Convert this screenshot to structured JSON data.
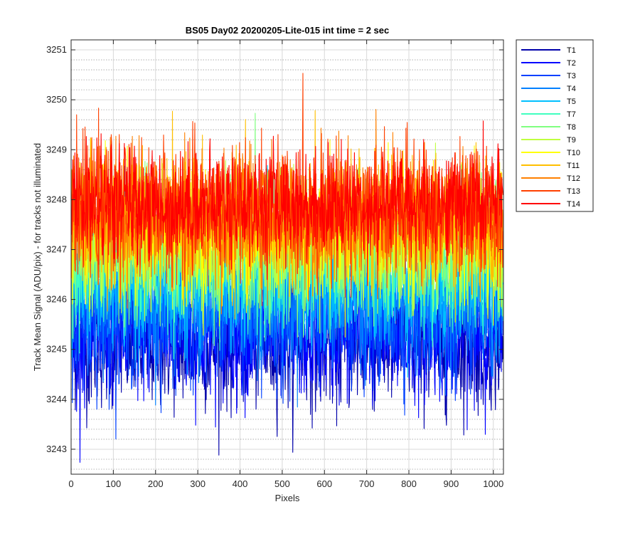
{
  "chart_data": {
    "type": "line",
    "title": "BS05 Day02 20200205-Lite-015 int time = 2 sec",
    "xlabel": "Pixels",
    "ylabel": "Track Mean Signal (ADU/pix) - for tracks not illuminated",
    "xlim": [
      0,
      1024
    ],
    "ylim": [
      3242.5,
      3251.2
    ],
    "x_ticks": [
      0,
      100,
      200,
      300,
      400,
      500,
      600,
      700,
      800,
      900,
      1000
    ],
    "x_tick_labels": [
      "0",
      "100",
      "200",
      "300",
      "400",
      "500",
      "600",
      "700",
      "800",
      "900",
      "1000"
    ],
    "y_ticks": [
      3243,
      3244,
      3245,
      3246,
      3247,
      3248,
      3249,
      3250,
      3251
    ],
    "y_tick_labels": [
      "3243",
      "3244",
      "3245",
      "3246",
      "3247",
      "3248",
      "3249",
      "3250",
      "3251"
    ],
    "grid": "major solid, minor dotted",
    "legend_placement": "outside-top-right",
    "n_pixels": 1024,
    "series": [
      {
        "name": "T1",
        "color": "#0000aa",
        "mean": 3245.1,
        "noise": 0.75
      },
      {
        "name": "T2",
        "color": "#0000ff",
        "mean": 3245.3,
        "noise": 0.75
      },
      {
        "name": "T3",
        "color": "#0040ff",
        "mean": 3245.6,
        "noise": 0.75
      },
      {
        "name": "T4",
        "color": "#0080ff",
        "mean": 3246.0,
        "noise": 0.75
      },
      {
        "name": "T5",
        "color": "#00c0ff",
        "mean": 3246.4,
        "noise": 0.75
      },
      {
        "name": "T7",
        "color": "#40ffbf",
        "mean": 3246.8,
        "noise": 0.75
      },
      {
        "name": "T8",
        "color": "#80ff80",
        "mean": 3247.0,
        "noise": 0.75
      },
      {
        "name": "T9",
        "color": "#bfff40",
        "mean": 3247.2,
        "noise": 0.75
      },
      {
        "name": "T10",
        "color": "#ffff00",
        "mean": 3247.4,
        "noise": 0.75
      },
      {
        "name": "T11",
        "color": "#ffbf00",
        "mean": 3247.5,
        "noise": 0.75
      },
      {
        "name": "T12",
        "color": "#ff8000",
        "mean": 3247.7,
        "noise": 0.75
      },
      {
        "name": "T13",
        "color": "#ff4000",
        "mean": 3247.8,
        "noise": 0.75
      },
      {
        "name": "T14",
        "color": "#ff0000",
        "mean": 3247.9,
        "noise": 0.65
      }
    ]
  }
}
